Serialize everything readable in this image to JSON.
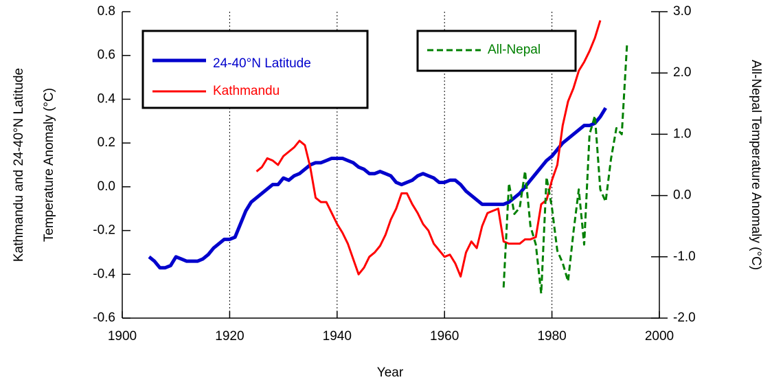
{
  "chart_data": {
    "type": "line",
    "xlabel": "Year",
    "ylabel": [
      "Kathmandu and 24-40°N Latitude",
      "Temperature Anomaly (°C)"
    ],
    "y2label": "All-Nepal Temperature Anomaly (°C)",
    "xlim": [
      1900,
      2000
    ],
    "xticks": [
      1900,
      1920,
      1940,
      1960,
      1980,
      2000
    ],
    "ylim": [
      -0.6,
      0.8
    ],
    "yticks": [
      -0.6,
      -0.4,
      -0.2,
      {
        "value": 0,
        "label": "0.0"
      },
      0.2,
      0.4,
      0.6,
      0.8
    ],
    "y2lim": [
      -2,
      3
    ],
    "y2ticks": [
      {
        "value": -2,
        "label": "-2.0"
      },
      {
        "value": -1,
        "label": "-1.0"
      },
      {
        "value": 0,
        "label": "0.0"
      },
      {
        "value": 1,
        "label": "1.0"
      },
      {
        "value": 2,
        "label": "2.0"
      },
      {
        "value": 3,
        "label": "3.0"
      }
    ],
    "grid": "x",
    "x": [
      1905,
      1906,
      1907,
      1908,
      1909,
      1910,
      1911,
      1912,
      1913,
      1914,
      1915,
      1916,
      1917,
      1918,
      1919,
      1920,
      1921,
      1922,
      1923,
      1924,
      1925,
      1926,
      1927,
      1928,
      1929,
      1930,
      1931,
      1932,
      1933,
      1934,
      1935,
      1936,
      1937,
      1938,
      1939,
      1940,
      1941,
      1942,
      1943,
      1944,
      1945,
      1946,
      1947,
      1948,
      1949,
      1950,
      1951,
      1952,
      1953,
      1954,
      1955,
      1956,
      1957,
      1958,
      1959,
      1960,
      1961,
      1962,
      1963,
      1964,
      1965,
      1966,
      1967,
      1968,
      1969,
      1970,
      1971,
      1972,
      1973,
      1974,
      1975,
      1976,
      1977,
      1978,
      1979,
      1980,
      1981,
      1982,
      1983,
      1984,
      1985,
      1986,
      1987,
      1988,
      1989,
      1990,
      1991,
      1992,
      1993,
      1994
    ],
    "series": [
      {
        "name": "24-40°N Latitude",
        "color": "#0000cc",
        "values": [
          -0.32,
          -0.34,
          -0.37,
          -0.37,
          -0.36,
          -0.32,
          -0.33,
          -0.34,
          -0.34,
          -0.34,
          -0.33,
          -0.31,
          -0.28,
          -0.26,
          -0.24,
          -0.24,
          -0.23,
          -0.17,
          -0.11,
          -0.07,
          -0.05,
          -0.03,
          -0.01,
          0.01,
          0.01,
          0.04,
          0.03,
          0.05,
          0.06,
          0.08,
          0.1,
          0.11,
          0.11,
          0.12,
          0.13,
          0.13,
          0.13,
          0.12,
          0.11,
          0.09,
          0.08,
          0.06,
          0.06,
          0.07,
          0.06,
          0.05,
          0.02,
          0.01,
          0.02,
          0.03,
          0.05,
          0.06,
          0.05,
          0.04,
          0.02,
          0.02,
          0.03,
          0.03,
          0.01,
          -0.02,
          -0.04,
          -0.06,
          -0.08,
          -0.08,
          -0.08,
          -0.08,
          -0.08,
          -0.07,
          -0.05,
          -0.03,
          0.0,
          0.03,
          0.06,
          0.09,
          0.12,
          0.14,
          0.17,
          0.2,
          0.22,
          0.24,
          0.26,
          0.28,
          0.28,
          0.29,
          0.32,
          0.36,
          null,
          null,
          null,
          null
        ]
      },
      {
        "name": "Kathmandu",
        "color": "#ff0000",
        "values": [
          null,
          null,
          null,
          null,
          null,
          null,
          null,
          null,
          null,
          null,
          null,
          null,
          null,
          null,
          null,
          null,
          null,
          null,
          null,
          null,
          0.07,
          0.09,
          0.13,
          0.12,
          0.1,
          0.14,
          0.16,
          0.18,
          0.21,
          0.19,
          0.09,
          -0.05,
          -0.07,
          -0.07,
          -0.12,
          -0.17,
          -0.21,
          -0.26,
          -0.33,
          -0.4,
          -0.37,
          -0.32,
          -0.3,
          -0.27,
          -0.22,
          -0.15,
          -0.1,
          -0.03,
          -0.03,
          -0.08,
          -0.12,
          -0.17,
          -0.2,
          -0.26,
          -0.29,
          -0.32,
          -0.31,
          -0.35,
          -0.41,
          -0.3,
          -0.25,
          -0.28,
          -0.18,
          -0.12,
          -0.11,
          -0.1,
          -0.25,
          -0.26,
          -0.26,
          -0.26,
          -0.24,
          -0.24,
          -0.23,
          -0.08,
          -0.06,
          0.03,
          0.1,
          0.28,
          0.39,
          0.45,
          0.53,
          0.57,
          0.62,
          0.68,
          0.76,
          null,
          null,
          null,
          null,
          null
        ]
      },
      {
        "name": "All-Nepal",
        "color": "#008000",
        "axis": "y2",
        "dashed": true,
        "values": [
          null,
          null,
          null,
          null,
          null,
          null,
          null,
          null,
          null,
          null,
          null,
          null,
          null,
          null,
          null,
          null,
          null,
          null,
          null,
          null,
          null,
          null,
          null,
          null,
          null,
          null,
          null,
          null,
          null,
          null,
          null,
          null,
          null,
          null,
          null,
          null,
          null,
          null,
          null,
          null,
          null,
          null,
          null,
          null,
          null,
          null,
          null,
          null,
          null,
          null,
          null,
          null,
          null,
          null,
          null,
          null,
          null,
          null,
          null,
          null,
          null,
          null,
          null,
          null,
          null,
          null,
          -1.5,
          0.2,
          -0.3,
          -0.2,
          0.4,
          -0.5,
          -0.8,
          -1.6,
          0.3,
          -0.2,
          -0.9,
          -1.1,
          -1.4,
          -0.6,
          0.1,
          -0.8,
          1.0,
          1.3,
          0.1,
          -0.1,
          0.6,
          1.1,
          1.0,
          2.5
        ]
      }
    ]
  }
}
